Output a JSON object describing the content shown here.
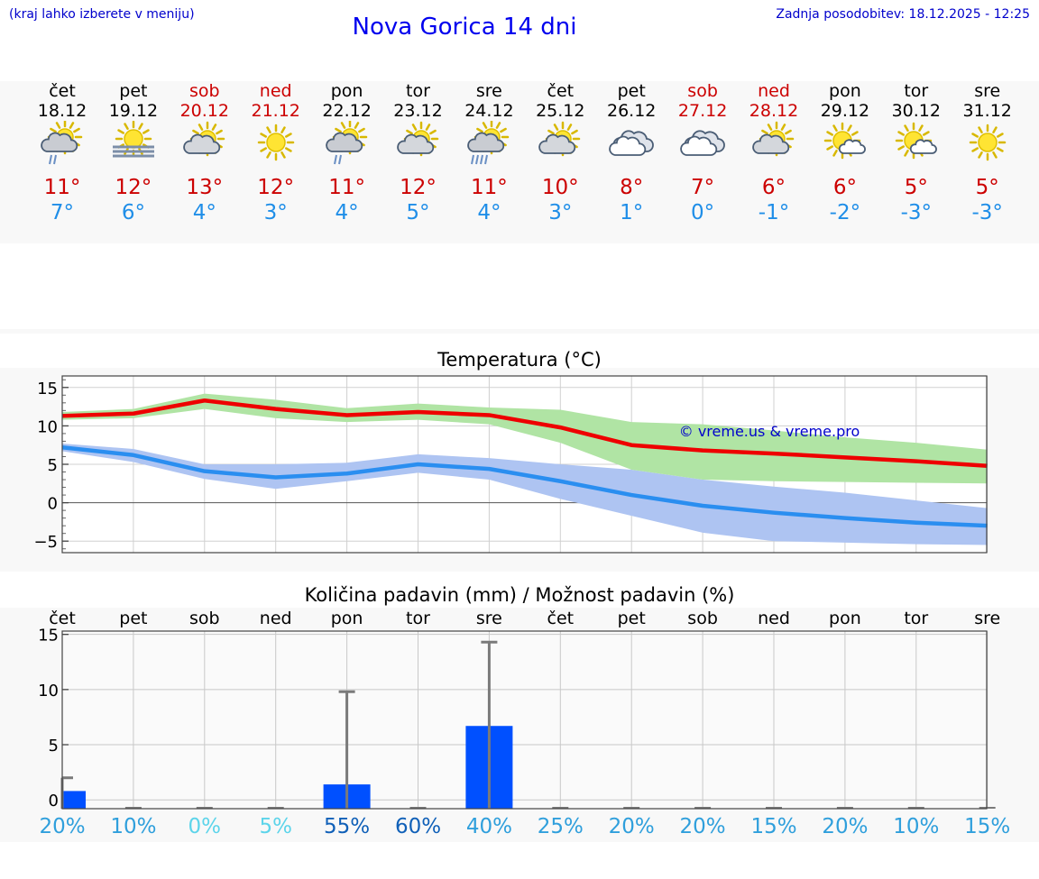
{
  "header": {
    "menu_hint": "(kraj lahko izberete v meniju)",
    "title": "Nova Gorica 14 dni",
    "updated": "Zadnja posodobitev: 18.12.2025 - 12:25"
  },
  "colors": {
    "weekday": "#000000",
    "weekend": "#cc0000",
    "max_temp": "#cc0000",
    "min_temp": "#1f8ee8",
    "max_line": "#ee0000",
    "max_band": "#b0e4a4",
    "min_line": "#2a8ef0",
    "min_band": "#aec4f2",
    "precip_bar": "#0050ff",
    "watermark": "#0000cc"
  },
  "days": [
    {
      "name": "čet",
      "date": "18.12",
      "weekend": false,
      "icon": "sun-cloud-rain",
      "max": "11°",
      "min": "7°"
    },
    {
      "name": "pet",
      "date": "19.12",
      "weekend": false,
      "icon": "sun-fog",
      "max": "12°",
      "min": "6°"
    },
    {
      "name": "sob",
      "date": "20.12",
      "weekend": true,
      "icon": "sun-cloud",
      "max": "13°",
      "min": "4°"
    },
    {
      "name": "ned",
      "date": "21.12",
      "weekend": true,
      "icon": "sun",
      "max": "12°",
      "min": "3°"
    },
    {
      "name": "pon",
      "date": "22.12",
      "weekend": false,
      "icon": "sun-cloud-rain",
      "max": "11°",
      "min": "4°"
    },
    {
      "name": "tor",
      "date": "23.12",
      "weekend": false,
      "icon": "sun-cloud",
      "max": "12°",
      "min": "5°"
    },
    {
      "name": "sre",
      "date": "24.12",
      "weekend": false,
      "icon": "sun-cloud-heavy-rain",
      "max": "11°",
      "min": "4°"
    },
    {
      "name": "čet",
      "date": "25.12",
      "weekend": false,
      "icon": "sun-cloud",
      "max": "10°",
      "min": "3°"
    },
    {
      "name": "pet",
      "date": "26.12",
      "weekend": false,
      "icon": "cloudy",
      "max": "8°",
      "min": "1°"
    },
    {
      "name": "sob",
      "date": "27.12",
      "weekend": true,
      "icon": "cloudy",
      "max": "7°",
      "min": "0°"
    },
    {
      "name": "ned",
      "date": "28.12",
      "weekend": true,
      "icon": "sun-cloud",
      "max": "6°",
      "min": "-1°"
    },
    {
      "name": "pon",
      "date": "29.12",
      "weekend": false,
      "icon": "sun-small-cloud",
      "max": "6°",
      "min": "-2°"
    },
    {
      "name": "tor",
      "date": "30.12",
      "weekend": false,
      "icon": "sun-small-cloud",
      "max": "5°",
      "min": "-3°"
    },
    {
      "name": "sre",
      "date": "31.12",
      "weekend": false,
      "icon": "sun",
      "max": "5°",
      "min": "-3°"
    }
  ],
  "chart_data": [
    {
      "type": "line",
      "title": "Temperatura (°C)",
      "x": [
        0,
        1,
        2,
        3,
        4,
        5,
        6,
        7,
        8,
        9,
        10,
        11,
        12,
        13
      ],
      "ylim": [
        -6.5,
        16.5
      ],
      "yticks": [
        -5,
        0,
        5,
        10,
        15
      ],
      "ytick_labels": [
        "−5",
        "0",
        "5",
        "10",
        "15"
      ],
      "grid": true,
      "annotation": "© vreme.us & vreme.pro",
      "series": [
        {
          "name": "max",
          "values": [
            11.3,
            11.6,
            13.3,
            12.2,
            11.4,
            11.8,
            11.4,
            9.8,
            7.5,
            6.8,
            6.4,
            5.9,
            5.4,
            4.8
          ],
          "band_low": [
            10.8,
            11.0,
            12.2,
            11.0,
            10.5,
            10.8,
            10.2,
            7.8,
            4.3,
            3.0,
            2.8,
            2.7,
            2.6,
            2.5
          ],
          "band_high": [
            11.8,
            12.2,
            14.2,
            13.4,
            12.3,
            12.9,
            12.4,
            12.1,
            10.5,
            10.2,
            9.4,
            8.5,
            7.8,
            6.9
          ]
        },
        {
          "name": "min",
          "values": [
            7.2,
            6.2,
            4.1,
            3.3,
            3.8,
            5.0,
            4.4,
            2.8,
            1.0,
            -0.4,
            -1.3,
            -2.0,
            -2.6,
            -3.0
          ],
          "band_low": [
            6.7,
            5.3,
            3.1,
            1.8,
            2.8,
            3.9,
            3.0,
            0.5,
            -1.7,
            -3.9,
            -5.0,
            -5.2,
            -5.4,
            -5.5
          ],
          "band_high": [
            7.7,
            7.0,
            5.0,
            5.0,
            5.2,
            6.3,
            5.8,
            5.0,
            4.3,
            3.0,
            2.1,
            1.3,
            0.3,
            -0.7
          ]
        }
      ]
    },
    {
      "type": "bar",
      "title": "Količina padavin (mm) / Možnost padavin (%)",
      "categories": [
        "čet",
        "pet",
        "sob",
        "ned",
        "pon",
        "tor",
        "sre",
        "čet",
        "pet",
        "sob",
        "ned",
        "pon",
        "tor",
        "sre"
      ],
      "values": [
        0.8,
        0,
        0,
        0,
        1.4,
        0,
        6.7,
        0,
        0,
        0,
        0,
        0,
        0,
        0
      ],
      "error_high": [
        2.0,
        0,
        0,
        0,
        9.8,
        0,
        14.3,
        0,
        0,
        0,
        0,
        0,
        0,
        0
      ],
      "probability_labels": [
        "20%",
        "10%",
        "0%",
        "5%",
        "55%",
        "60%",
        "40%",
        "25%",
        "20%",
        "20%",
        "15%",
        "20%",
        "10%",
        "15%"
      ],
      "probability_colors": [
        "#2f9fdc",
        "#2f9fdc",
        "#5cd4ea",
        "#5cd4ea",
        "#1060b8",
        "#1060b8",
        "#2f9fdc",
        "#2f9fdc",
        "#2f9fdc",
        "#2f9fdc",
        "#2f9fdc",
        "#2f9fdc",
        "#2f9fdc",
        "#2f9fdc"
      ],
      "ylim": [
        -0.8,
        15.3
      ],
      "yticks": [
        0,
        5,
        10,
        15
      ],
      "ytick_labels": [
        "0",
        "5",
        "10",
        "15"
      ],
      "grid": true
    }
  ]
}
